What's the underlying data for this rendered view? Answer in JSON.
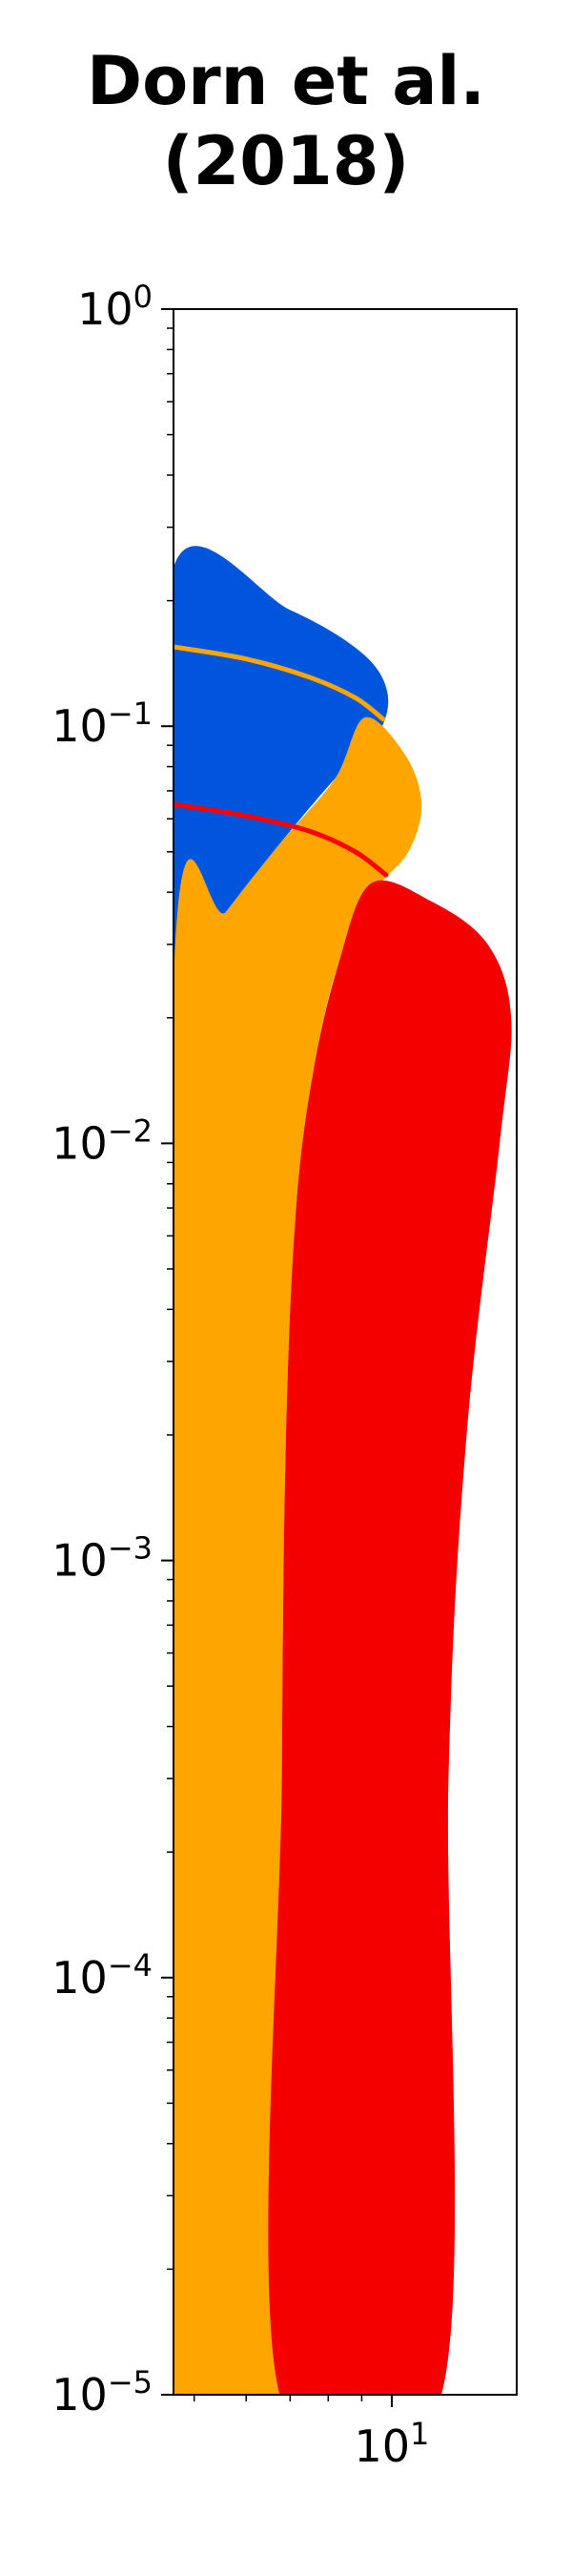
{
  "chart_data": {
    "type": "area",
    "title_lines": [
      "Dorn et al.",
      "(2018)"
    ],
    "xlabel": "",
    "ylabel": "",
    "x_scale": "log",
    "y_scale": "log",
    "ylim": [
      1e-05,
      1
    ],
    "xlim": [
      4.65,
      15.5
    ],
    "y_ticks": [
      {
        "value": 1,
        "base": "10",
        "exp": "0"
      },
      {
        "value": 0.1,
        "base": "10",
        "exp": "−1"
      },
      {
        "value": 0.01,
        "base": "10",
        "exp": "−2"
      },
      {
        "value": 0.001,
        "base": "10",
        "exp": "−3"
      },
      {
        "value": 0.0001,
        "base": "10",
        "exp": "−4"
      },
      {
        "value": 1e-05,
        "base": "10",
        "exp": "−5"
      }
    ],
    "x_ticks": [
      {
        "value": 10,
        "base": "10",
        "exp": "1"
      }
    ],
    "grid": false,
    "colors": {
      "blue": "#0055dd",
      "orange": "#ffa500",
      "red": "#f50000",
      "orange_line": "#ffa500",
      "red_line": "#ff0000"
    },
    "regions": [
      {
        "color_key": "blue",
        "boundary": [
          {
            "x": 4.65,
            "y": 0.24
          },
          {
            "x": 7.0,
            "y": 0.19
          },
          {
            "x": 9.0,
            "y": 0.15
          },
          {
            "x": 9.85,
            "y": 0.12
          },
          {
            "x": 9.5,
            "y": 0.095
          },
          {
            "x": 8.2,
            "y": 0.075
          },
          {
            "x": 6.8,
            "y": 0.053
          },
          {
            "x": 5.6,
            "y": 0.036
          },
          {
            "x": 4.65,
            "y": 0.024
          }
        ]
      },
      {
        "color_key": "orange",
        "boundary": [
          {
            "x": 9.1,
            "y": 0.105
          },
          {
            "x": 10.5,
            "y": 0.085
          },
          {
            "x": 11.1,
            "y": 0.065
          },
          {
            "x": 10.6,
            "y": 0.05
          },
          {
            "x": 9.4,
            "y": 0.04
          },
          {
            "x": 8.3,
            "y": 0.027
          },
          {
            "x": 7.6,
            "y": 0.015
          },
          {
            "x": 7.15,
            "y": 0.007
          },
          {
            "x": 6.9,
            "y": 0.002
          },
          {
            "x": 6.8,
            "y": 0.0003
          },
          {
            "x": 6.75,
            "y": 1e-05
          },
          {
            "x": 4.65,
            "y": 1e-05
          },
          {
            "x": 4.65,
            "y": 0.024
          },
          {
            "x": 5.6,
            "y": 0.036
          },
          {
            "x": 6.8,
            "y": 0.053
          },
          {
            "x": 8.2,
            "y": 0.075
          }
        ]
      },
      {
        "color_key": "red",
        "boundary": [
          {
            "x": 9.3,
            "y": 0.042
          },
          {
            "x": 11.5,
            "y": 0.038
          },
          {
            "x": 14.0,
            "y": 0.03
          },
          {
            "x": 15.2,
            "y": 0.02
          },
          {
            "x": 14.6,
            "y": 0.01
          },
          {
            "x": 13.0,
            "y": 0.002
          },
          {
            "x": 12.2,
            "y": 0.0003
          },
          {
            "x": 11.9,
            "y": 1e-05
          },
          {
            "x": 6.75,
            "y": 1e-05
          },
          {
            "x": 6.8,
            "y": 0.0003
          },
          {
            "x": 6.9,
            "y": 0.002
          },
          {
            "x": 7.15,
            "y": 0.007
          },
          {
            "x": 7.6,
            "y": 0.015
          },
          {
            "x": 8.3,
            "y": 0.027
          }
        ]
      }
    ],
    "series": [
      {
        "color_key": "orange_line",
        "x": [
          4.65,
          6.0,
          7.5,
          8.8,
          9.7
        ],
        "y": [
          0.155,
          0.145,
          0.131,
          0.117,
          0.104
        ]
      },
      {
        "color_key": "red_line",
        "x": [
          4.65,
          6.0,
          7.5,
          8.8,
          9.8
        ],
        "y": [
          0.065,
          0.061,
          0.056,
          0.05,
          0.044
        ]
      }
    ]
  }
}
